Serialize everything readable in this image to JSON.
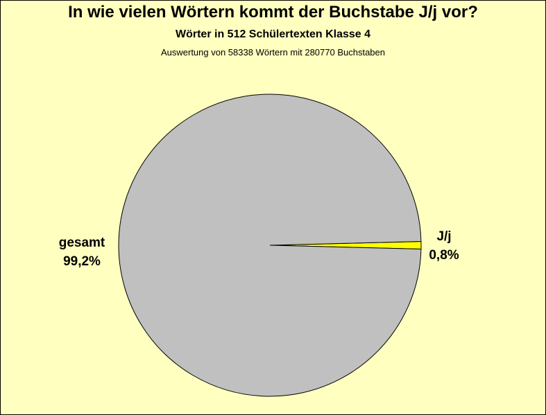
{
  "chart_data": {
    "type": "pie",
    "title": "In wie vielen Wörtern kommt der Buchstabe J/j vor?",
    "subtitle": "Wörter in 512 Schülertexten Klasse 4",
    "note": "Auswertung von 58338 Wörtern mit 280770 Buchstaben",
    "slices": [
      {
        "name": "J/j",
        "value": 0.8,
        "label": "0,8%",
        "color": "#ffff00"
      },
      {
        "name": "gesamt",
        "value": 99.2,
        "label": "99,2%",
        "color": "#c0c0c0"
      }
    ]
  }
}
